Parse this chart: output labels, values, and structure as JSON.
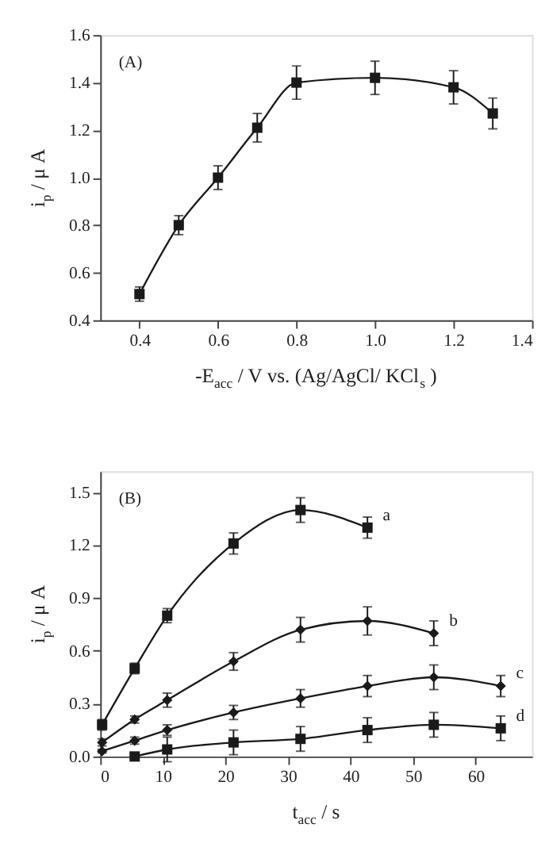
{
  "chart_data": [
    {
      "type": "line",
      "marker": "square",
      "line_style": "solid",
      "grid": false,
      "xlabel": "-E$_{acc}$ / V vs. (Ag/AgCl/ KCl$_{s}$ )",
      "ylabel": "i$_{p}$ / μ A",
      "annotations": [
        "(A)"
      ],
      "xlim": [
        0.3,
        1.4
      ],
      "xticks": [
        0.4,
        0.6,
        0.8,
        {
          "value": 1,
          "label": "1.0"
        },
        1.2,
        1.4
      ],
      "ylim": [
        0.4,
        1.6
      ],
      "yticks": [
        0.4,
        0.6,
        0.8,
        {
          "value": 1,
          "label": "1.0"
        },
        1.2,
        1.4,
        1.6
      ],
      "x": [
        0.4,
        0.5,
        0.6,
        0.7,
        0.8,
        1.0,
        1.2,
        1.3
      ],
      "series": [
        {
          "color": "#1a1a1a",
          "values": [
            0.51,
            0.8,
            1.0,
            1.21,
            1.4,
            1.42,
            1.38,
            1.27
          ],
          "errors": [
            0.03,
            0.04,
            0.05,
            0.06,
            0.07,
            0.07,
            0.07,
            0.065
          ]
        }
      ]
    },
    {
      "type": "line",
      "line_style": "solid",
      "grid": false,
      "xlabel": "t$_{acc}$ / s",
      "ylabel": "i$_{p}$ / μ A",
      "annotations": [
        "(B)"
      ],
      "xlim": [
        0,
        69
      ],
      "xticks": [
        0,
        10,
        20,
        30,
        40,
        50,
        60
      ],
      "ylim": [
        0,
        1.62
      ],
      "yticks": [
        {
          "value": 0,
          "label": "0.0"
        },
        0.3,
        0.6,
        0.9,
        1.2,
        1.5
      ],
      "series": [
        {
          "name": "a",
          "marker": "square",
          "color": "#1a1a1a",
          "x": [
            0.3,
            5.5,
            10.7,
            21.3,
            32,
            42.7
          ],
          "values": [
            0.18,
            0.5,
            0.8,
            1.21,
            1.4,
            1.3
          ],
          "errors": [
            0.03,
            0.03,
            0.04,
            0.06,
            0.07,
            0.06
          ]
        },
        {
          "name": "b",
          "marker": "diamond",
          "color": "#1a1a1a",
          "x": [
            0.3,
            5.5,
            10.7,
            21.3,
            32,
            42.7,
            53.3
          ],
          "values": [
            0.08,
            0.21,
            0.32,
            0.54,
            0.72,
            0.77,
            0.7
          ],
          "errors": [
            0.02,
            0.02,
            0.04,
            0.05,
            0.07,
            0.08,
            0.07
          ]
        },
        {
          "name": "c",
          "marker": "diamond",
          "color": "#1a1a1a",
          "x": [
            0.3,
            5.5,
            10.7,
            21.3,
            32,
            42.7,
            53.3,
            64
          ],
          "values": [
            0.03,
            0.09,
            0.15,
            0.25,
            0.33,
            0.4,
            0.45,
            0.4
          ],
          "errors": [
            0.01,
            0.02,
            0.03,
            0.04,
            0.05,
            0.06,
            0.07,
            0.06
          ]
        },
        {
          "name": "d",
          "marker": "square",
          "color": "#1a1a1a",
          "x": [
            5.5,
            10.7,
            21.3,
            32,
            42.7,
            53.3,
            64
          ],
          "values": [
            0.0,
            0.04,
            0.08,
            0.1,
            0.15,
            0.18,
            0.16
          ],
          "errors": [
            0.005,
            0.07,
            0.07,
            0.07,
            0.07,
            0.07,
            0.07
          ]
        }
      ]
    }
  ]
}
